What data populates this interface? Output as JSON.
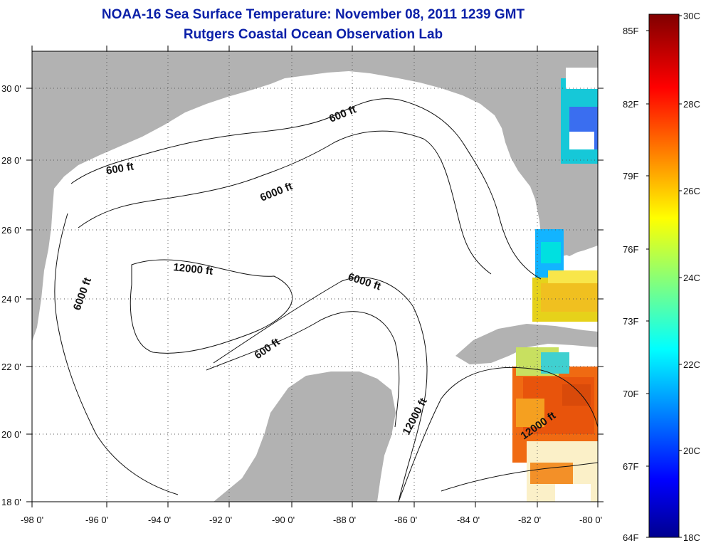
{
  "title": {
    "line1": "NOAA-16 Sea Surface Temperature:  November 08, 2011 1239 GMT",
    "line2": "Rutgers Coastal Ocean Observation Lab"
  },
  "axes": {
    "x_ticks": [
      "-98 0'",
      "-96 0'",
      "-94 0'",
      "-92 0'",
      "-90 0'",
      "-88 0'",
      "-86 0'",
      "-84 0'",
      "-82 0'",
      "-80 0'"
    ],
    "y_ticks": [
      "18 0'",
      "20 0'",
      "22 0'",
      "24 0'",
      "26 0'",
      "28 0'",
      "30 0'"
    ]
  },
  "contour_labels": [
    "600 ft",
    "600 ft",
    "6000 ft",
    "6000 ft",
    "12000 ft",
    "6000 ft",
    "600 ft",
    "12000 ft",
    "12000 ft"
  ],
  "colorbar": {
    "f_labels": [
      "85F",
      "82F",
      "79F",
      "76F",
      "73F",
      "70F",
      "67F",
      "64F"
    ],
    "c_labels": [
      "30C",
      "28C",
      "26C",
      "24C",
      "22C",
      "20C",
      "18C"
    ]
  },
  "colors": {
    "title": "#0a1fa8",
    "land": "#b2b2b2",
    "water": "#ffffff"
  }
}
